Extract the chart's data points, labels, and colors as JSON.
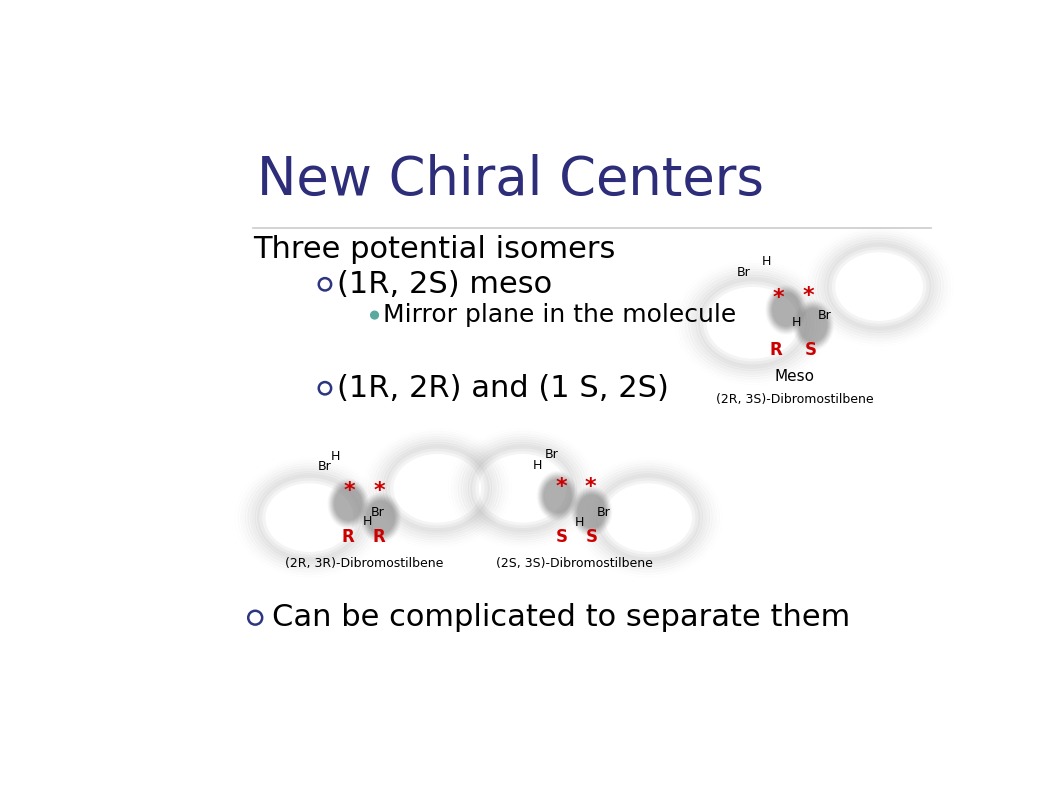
{
  "title": "New Chiral Centers",
  "title_color": "#2d2d7a",
  "title_fontsize": 38,
  "bg_color": "#ffffff",
  "line1": "Three potential isomers",
  "line1_fontsize": 22,
  "bullet1_text": "(1R, 2S) meso",
  "bullet1_fontsize": 22,
  "sub_bullet1_text": "Mirror plane in the molecule",
  "sub_bullet1_fontsize": 18,
  "bullet2_text": "(1R, 2R) and (1 S, 2S)",
  "bullet2_fontsize": 22,
  "bullet3_text": "Can be complicated to separate them",
  "bullet3_fontsize": 22,
  "text_color": "#000000",
  "red_color": "#cc0000",
  "blue_color": "#2d3580",
  "teal_color": "#5ba8a0",
  "separator_color": "#cccccc"
}
